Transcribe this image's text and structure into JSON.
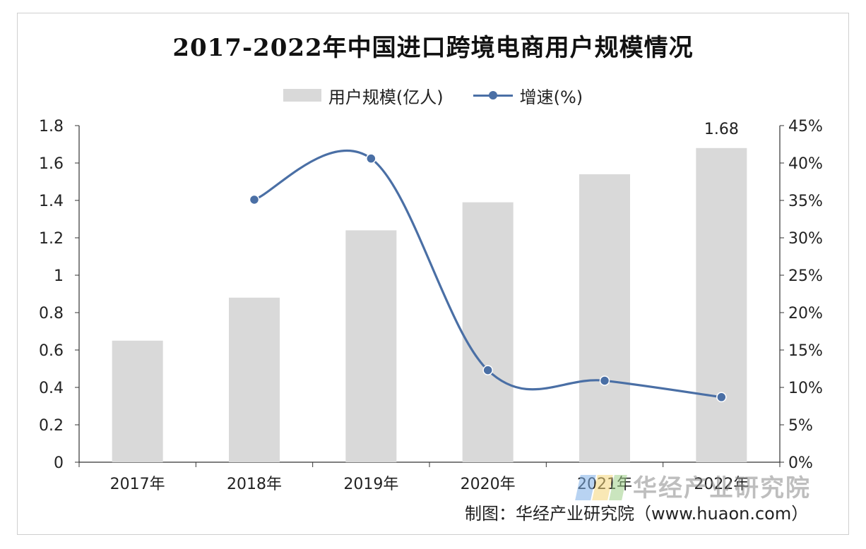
{
  "title": "2017-2022年中国进口跨境电商用户规模情况",
  "legend": {
    "bar_label": "用户规模(亿人)",
    "line_label": "增速(%)"
  },
  "watermark": "华经产业研究院",
  "source": "制图：华经产业研究院（www.huaon.com）",
  "colors": {
    "bar": "#d9d9d9",
    "line": "#4a6fa5",
    "axis": "#333333"
  },
  "chart_data": {
    "type": "bar",
    "title": "2017-2022年中国进口跨境电商用户规模情况",
    "categories": [
      "2017年",
      "2018年",
      "2019年",
      "2020年",
      "2021年",
      "2022年"
    ],
    "series": [
      {
        "name": "用户规模(亿人)",
        "type": "bar",
        "axis": "left",
        "values": [
          0.65,
          0.88,
          1.24,
          1.39,
          1.54,
          1.68
        ]
      },
      {
        "name": "增速(%)",
        "type": "line",
        "axis": "right",
        "values": [
          null,
          35.1,
          40.6,
          12.3,
          10.9,
          8.7
        ]
      }
    ],
    "data_labels": [
      {
        "category": "2022年",
        "series": "用户规模(亿人)",
        "text": "1.68"
      }
    ],
    "y_left": {
      "range": [
        0,
        1.8
      ],
      "ticks": [
        "0",
        "0.2",
        "0.4",
        "0.6",
        "0.8",
        "1",
        "1.2",
        "1.4",
        "1.6",
        "1.8"
      ]
    },
    "y_right": {
      "range": [
        0,
        45
      ],
      "ticks": [
        "0%",
        "5%",
        "10%",
        "15%",
        "20%",
        "25%",
        "30%",
        "35%",
        "40%",
        "45%"
      ]
    },
    "grid": false,
    "legend_position": "top-center"
  }
}
